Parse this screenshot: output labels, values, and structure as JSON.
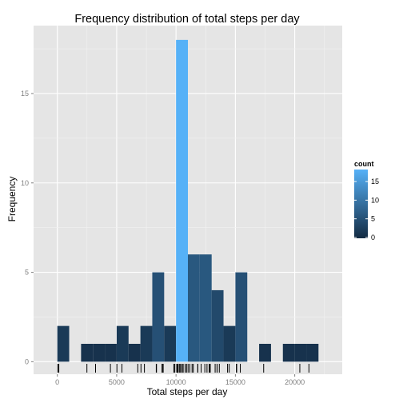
{
  "chart_data": {
    "type": "bar",
    "title": "Frequency distribution of total steps per day",
    "xlabel": "Total steps per day",
    "ylabel": "Frequency",
    "xlim": [
      -2000,
      24000
    ],
    "ylim": [
      -0.7,
      18.8
    ],
    "x_ticks": [
      0,
      5000,
      10000,
      15000,
      20000
    ],
    "x_tick_labels": [
      "0",
      "5000",
      "10000",
      "15000",
      "20000"
    ],
    "y_ticks": [
      0,
      5,
      10,
      15
    ],
    "y_tick_labels": [
      "0",
      "5",
      "10",
      "15"
    ],
    "bin_width": 1000,
    "bins": [
      {
        "start": 0,
        "count": 2
      },
      {
        "start": 2000,
        "count": 1
      },
      {
        "start": 3000,
        "count": 1
      },
      {
        "start": 4000,
        "count": 1
      },
      {
        "start": 5000,
        "count": 2
      },
      {
        "start": 6000,
        "count": 1
      },
      {
        "start": 7000,
        "count": 2
      },
      {
        "start": 8000,
        "count": 5
      },
      {
        "start": 9000,
        "count": 2
      },
      {
        "start": 10000,
        "count": 18
      },
      {
        "start": 11000,
        "count": 6
      },
      {
        "start": 12000,
        "count": 6
      },
      {
        "start": 13000,
        "count": 4
      },
      {
        "start": 14000,
        "count": 2
      },
      {
        "start": 15000,
        "count": 5
      },
      {
        "start": 17000,
        "count": 1
      },
      {
        "start": 19000,
        "count": 1
      },
      {
        "start": 20000,
        "count": 1
      },
      {
        "start": 21000,
        "count": 1
      }
    ],
    "rug": [
      41,
      126,
      2492,
      3219,
      4472,
      5018,
      5441,
      6778,
      7047,
      7336,
      8334,
      8355,
      8821,
      8841,
      8918,
      9819,
      9900,
      10056,
      10119,
      10139,
      10183,
      10304,
      10395,
      10439,
      10571,
      10600,
      10765,
      10890,
      11015,
      11162,
      11352,
      11458,
      11829,
      11834,
      12116,
      12426,
      12608,
      12787,
      12811,
      12883,
      13294,
      13452,
      13460,
      13646,
      14339,
      14478,
      15084,
      15098,
      15110,
      15414,
      17382,
      20427,
      21194
    ],
    "grid": true,
    "legend": {
      "title": "count",
      "position": "right",
      "ticks": [
        0,
        5,
        10,
        15
      ],
      "tick_labels": [
        "0",
        "5",
        "10",
        "15"
      ],
      "color_low": "#132B43",
      "color_high": "#56B1F7"
    },
    "panel_background": "#E5E5E5",
    "rug_color": "#000000"
  }
}
